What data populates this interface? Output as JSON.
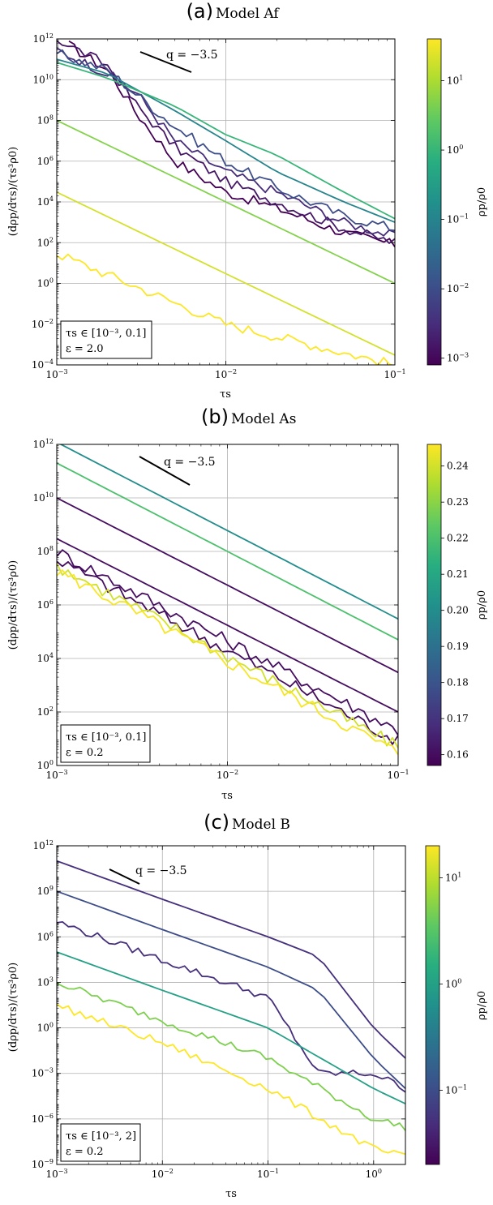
{
  "chart_data": [
    {
      "type": "line",
      "panel_label": "(a)",
      "title": "Model Af",
      "xlabel": "τs",
      "ylabel": "(dρp/dτs)/(τs³ρ0)",
      "xscale": "log",
      "yscale": "log",
      "xlim": [
        0.001,
        0.1
      ],
      "ylim": [
        0.0001,
        1000000000000.0
      ],
      "x_ticks": [
        "10⁻³",
        "10⁻²",
        "10⁻¹"
      ],
      "y_ticks": [
        "10⁻⁴",
        "10⁻²",
        "10⁰",
        "10²",
        "10⁴",
        "10⁶",
        "10⁸",
        "10¹⁰",
        "10¹²"
      ],
      "grid": true,
      "slope_annotation": "q = −3.5",
      "info_box": [
        "τs ∈ [10⁻³, 0.1]",
        "ε = 2.0"
      ],
      "info_box_position": "bottom-left",
      "colorbar": {
        "label": "ρp/ρ0",
        "scale": "log",
        "range": [
          0.0008,
          40
        ],
        "ticks": [
          "10⁻³",
          "10⁻²",
          "10⁻¹",
          "10⁰",
          "10¹"
        ],
        "colormap": "viridis"
      },
      "series": [
        {
          "color_value": 0.0008,
          "x": [
            0.00118,
            0.002,
            0.003,
            0.005,
            0.01,
            0.02,
            0.05,
            0.1
          ],
          "y": [
            500000000000.0,
            30000000000.0,
            200000000.0,
            1000000.0,
            30000.0,
            5000.0,
            300,
            80
          ],
          "noisy": true
        },
        {
          "color_value": 0.0015,
          "x": [
            0.001,
            0.002,
            0.003,
            0.005,
            0.01,
            0.02,
            0.05,
            0.1
          ],
          "y": [
            1000000000000.0,
            50000000000.0,
            500000000.0,
            5000000.0,
            100000.0,
            10000.0,
            500,
            100
          ],
          "noisy": true
        },
        {
          "color_value": 0.003,
          "x": [
            0.001,
            0.002,
            0.003,
            0.005,
            0.01,
            0.02,
            0.05,
            0.1
          ],
          "y": [
            300000000000.0,
            20000000000.0,
            2000000000.0,
            10000000.0,
            300000.0,
            30000.0,
            1000,
            200
          ],
          "noisy": true
        },
        {
          "color_value": 0.01,
          "x": [
            0.001,
            0.002,
            0.005,
            0.01,
            0.02,
            0.05,
            0.1
          ],
          "y": [
            200000000000.0,
            30000000000.0,
            50000000.0,
            1000000.0,
            50000.0,
            2000.0,
            500
          ],
          "noisy": true
        },
        {
          "color_value": 0.1,
          "x": [
            0.001,
            0.002,
            0.005,
            0.01,
            0.02,
            0.05,
            0.1
          ],
          "y": [
            100000000000.0,
            20000000000.0,
            300000000.0,
            10000000.0,
            300000.0,
            10000.0,
            1000
          ],
          "noisy": false
        },
        {
          "color_value": 1.0,
          "x": [
            0.001,
            0.002,
            0.005,
            0.01,
            0.02,
            0.05,
            0.1
          ],
          "y": [
            70000000000.0,
            12000000000.0,
            500000000.0,
            20000000.0,
            2000000.0,
            30000.0,
            1500
          ],
          "noisy": false
        },
        {
          "color_value": 5.0,
          "x": [
            0.001,
            0.01,
            0.1
          ],
          "y": [
            100000000.0,
            10000.0,
            1
          ],
          "noisy": false
        },
        {
          "color_value": 20.0,
          "x": [
            0.001,
            0.01,
            0.1
          ],
          "y": [
            30000.0,
            3,
            0.0003
          ],
          "noisy": false
        },
        {
          "color_value": 40.0,
          "x": [
            0.001,
            0.01,
            0.1
          ],
          "y": [
            30,
            0.01,
            0.0001
          ],
          "noisy": true
        }
      ]
    },
    {
      "type": "line",
      "panel_label": "(b)",
      "title": "Model As",
      "xlabel": "τs",
      "ylabel": "(dρp/dτs)/(τs³ρ0)",
      "xscale": "log",
      "yscale": "log",
      "xlim": [
        0.001,
        0.1
      ],
      "ylim": [
        1,
        1000000000000.0
      ],
      "x_ticks": [
        "10⁻³",
        "10⁻²",
        "10⁻¹"
      ],
      "y_ticks": [
        "10⁰",
        "10²",
        "10⁴",
        "10⁶",
        "10⁸",
        "10¹⁰",
        "10¹²"
      ],
      "grid": true,
      "slope_annotation": "q = −3.5",
      "info_box": [
        "τs ∈ [10⁻³, 0.1]",
        "ε = 0.2"
      ],
      "info_box_position": "bottom-left",
      "colorbar": {
        "label": "ρp/ρ0",
        "scale": "linear",
        "range": [
          0.157,
          0.246
        ],
        "ticks": [
          "0.16",
          "0.17",
          "0.18",
          "0.19",
          "0.20",
          "0.21",
          "0.22",
          "0.23",
          "0.24"
        ],
        "colormap": "viridis"
      },
      "series": [
        {
          "color_value": 0.2,
          "x": [
            0.001,
            0.1
          ],
          "y": [
            1200000000000.0,
            300000.0
          ],
          "noisy": false
        },
        {
          "color_value": 0.22,
          "x": [
            0.001,
            0.1
          ],
          "y": [
            200000000000.0,
            50000.0
          ],
          "noisy": false
        },
        {
          "color_value": 0.16,
          "x": [
            0.001,
            0.1
          ],
          "y": [
            10000000000.0,
            3000.0
          ],
          "noisy": false
        },
        {
          "color_value": 0.16,
          "x": [
            0.001,
            0.1
          ],
          "y": [
            300000000.0,
            100
          ],
          "noisy": false
        },
        {
          "color_value": 0.16,
          "x": [
            0.001,
            0.1
          ],
          "y": [
            100000000.0,
            20
          ],
          "noisy": true
        },
        {
          "color_value": 0.16,
          "x": [
            0.001,
            0.1
          ],
          "y": [
            50000000.0,
            8
          ],
          "noisy": true
        },
        {
          "color_value": 0.24,
          "x": [
            0.001,
            0.1
          ],
          "y": [
            30000000.0,
            5
          ],
          "noisy": true
        },
        {
          "color_value": 0.245,
          "x": [
            0.001,
            0.1
          ],
          "y": [
            20000000.0,
            3
          ],
          "noisy": true
        }
      ]
    },
    {
      "type": "line",
      "panel_label": "(c)",
      "title": "Model B",
      "xlabel": "τs",
      "ylabel": "(dρp/dτs)/(τs³ρ0)",
      "xscale": "log",
      "yscale": "log",
      "xlim": [
        0.001,
        2
      ],
      "ylim": [
        1e-09,
        1000000000000.0
      ],
      "x_ticks": [
        "10⁻³",
        "10⁻²",
        "10⁻¹",
        "10⁰"
      ],
      "y_ticks": [
        "10⁻⁹",
        "10⁻⁶",
        "10⁻³",
        "10⁰",
        "10³",
        "10⁶",
        "10⁹",
        "10¹²"
      ],
      "grid": true,
      "slope_annotation": "q = −3.5",
      "info_box": [
        "τs ∈ [10⁻³, 2]",
        "ε = 0.2"
      ],
      "info_box_position": "bottom-left",
      "colorbar": {
        "label": "ρp/ρ0",
        "scale": "log",
        "range": [
          0.02,
          20
        ],
        "ticks": [
          "10⁻¹",
          "10⁰",
          "10¹"
        ],
        "colormap": "viridis"
      },
      "series": [
        {
          "color_value": 0.05,
          "x": [
            0.001,
            0.01,
            0.1,
            0.3,
            1,
            2
          ],
          "y": [
            100000000000.0,
            300000000.0,
            1000000.0,
            50000.0,
            1,
            0.01
          ],
          "noisy": false
        },
        {
          "color_value": 0.1,
          "x": [
            0.001,
            0.01,
            0.1,
            0.3,
            1,
            2
          ],
          "y": [
            1000000000.0,
            3000000.0,
            10000.0,
            300,
            0.01,
            0.0001
          ],
          "noisy": false
        },
        {
          "color_value": 0.05,
          "x": [
            0.001,
            0.01,
            0.1,
            0.3,
            1,
            2
          ],
          "y": [
            10000000.0,
            30000.0,
            100,
            0.001,
            0.001,
            0.0001
          ],
          "noisy": true
        },
        {
          "color_value": 1.0,
          "x": [
            0.001,
            0.01,
            0.1,
            1,
            2
          ],
          "y": [
            100000.0,
            300,
            1,
            0.0001,
            1e-05
          ],
          "noisy": false
        },
        {
          "color_value": 5.0,
          "x": [
            0.001,
            0.01,
            0.1,
            1,
            2
          ],
          "y": [
            1000,
            3,
            0.01,
            1e-06,
            3e-07
          ],
          "noisy": true
        },
        {
          "color_value": 20.0,
          "x": [
            0.001,
            0.01,
            0.1,
            1,
            2
          ],
          "y": [
            30,
            0.1,
            0.0001,
            1e-08,
            3e-09
          ],
          "noisy": true
        }
      ]
    }
  ]
}
